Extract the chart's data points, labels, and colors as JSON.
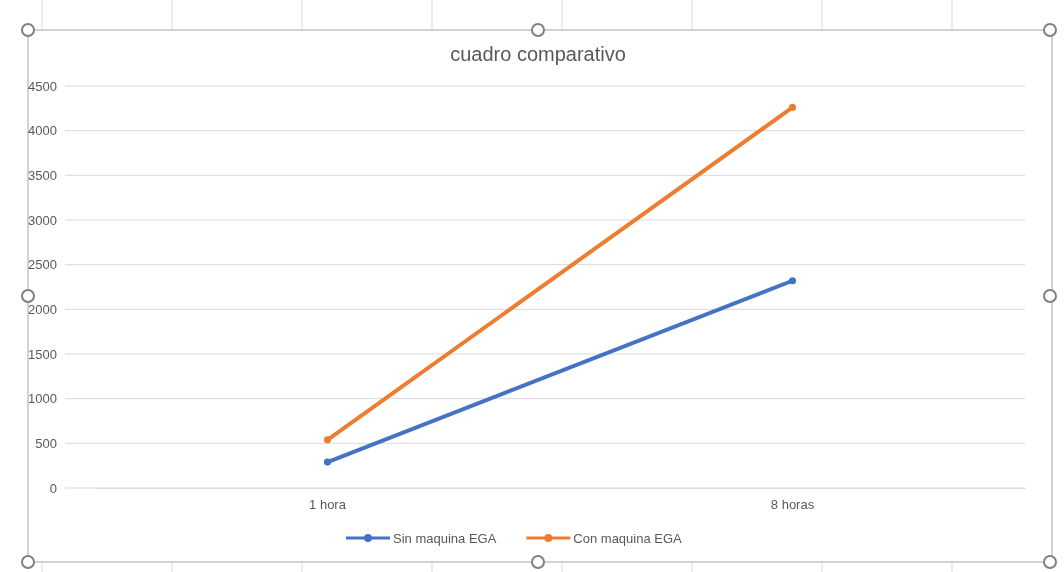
{
  "chart_data": {
    "type": "line",
    "title": "cuadro comparativo",
    "categories": [
      "1 hora",
      "8 horas"
    ],
    "series": [
      {
        "name": "Sin maquina EGA",
        "color": "#4472c4",
        "values": [
          290,
          2320
        ]
      },
      {
        "name": "Con maquina EGA",
        "color": "#ed7d31",
        "values": [
          540,
          4260
        ]
      }
    ],
    "ylim": [
      0,
      4500
    ],
    "yticks": [
      0,
      500,
      1000,
      1500,
      2000,
      2500,
      3000,
      3500,
      4000,
      4500
    ],
    "grid": "y",
    "legend": "bottom",
    "marker": "circle",
    "line_style": "solid"
  }
}
